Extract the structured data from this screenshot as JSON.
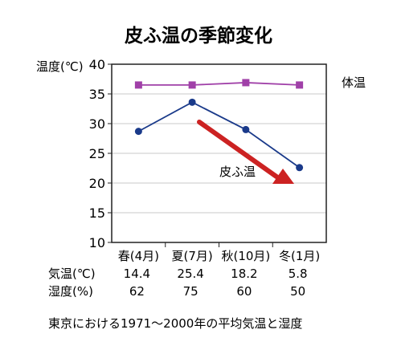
{
  "chart_data": {
    "type": "line",
    "title": "皮ふ温の季節変化",
    "ylabel": "温度(℃)",
    "ylim": [
      10,
      40
    ],
    "yticks": [
      10,
      15,
      20,
      25,
      30,
      35,
      40
    ],
    "grid": true,
    "categories": [
      "春(4月)",
      "夏(7月)",
      "秋(10月)",
      "冬(1月)"
    ],
    "series": [
      {
        "name": "体温",
        "values": [
          36.5,
          36.5,
          36.9,
          36.5
        ],
        "color": "#a040a8",
        "marker": "square"
      },
      {
        "name": "皮ふ温",
        "values": [
          28.7,
          33.6,
          29.0,
          22.6
        ],
        "color": "#1a3a8a",
        "marker": "circle"
      }
    ],
    "annotation": {
      "text": "皮ふ温",
      "arrow_color": "#cc2222"
    },
    "table": {
      "rows": [
        {
          "label": "気温(℃)",
          "values": [
            "14.4",
            "25.4",
            "18.2",
            "5.8"
          ]
        },
        {
          "label": "湿度(%)",
          "values": [
            "62",
            "75",
            "60",
            "50"
          ]
        }
      ]
    },
    "caption": "東京における1971～2000年の平均気温と湿度"
  }
}
